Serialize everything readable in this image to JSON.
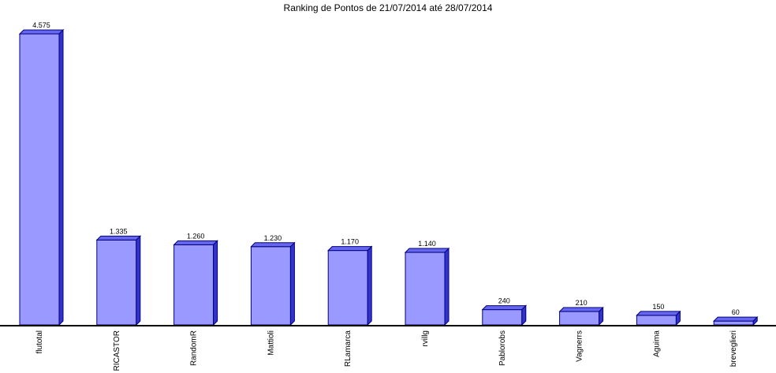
{
  "chart_data": {
    "type": "bar",
    "title": "Ranking de Pontos de 21/07/2014 até 28/07/2014",
    "categories": [
      "flutotal",
      "RICASTOR",
      "RandomR",
      "Mattioli",
      "RLamarca",
      "rvillg",
      "Pablorobs",
      "Vagnerrs",
      "Aguima",
      "breveglieri"
    ],
    "values": [
      4575,
      1335,
      1260,
      1230,
      1170,
      1140,
      240,
      210,
      150,
      60
    ],
    "value_labels": [
      "4.575",
      "1.335",
      "1.260",
      "1.230",
      "1.170",
      "1.140",
      "240",
      "210",
      "150",
      "60"
    ],
    "ylim": [
      0,
      4575
    ],
    "grid": false,
    "legend": "none",
    "colors": {
      "bar_front": "#9999ff",
      "bar_side": "#3333cc",
      "bar_top": "#6666ee",
      "bar_edge": "#000080",
      "axis": "#000000"
    }
  }
}
